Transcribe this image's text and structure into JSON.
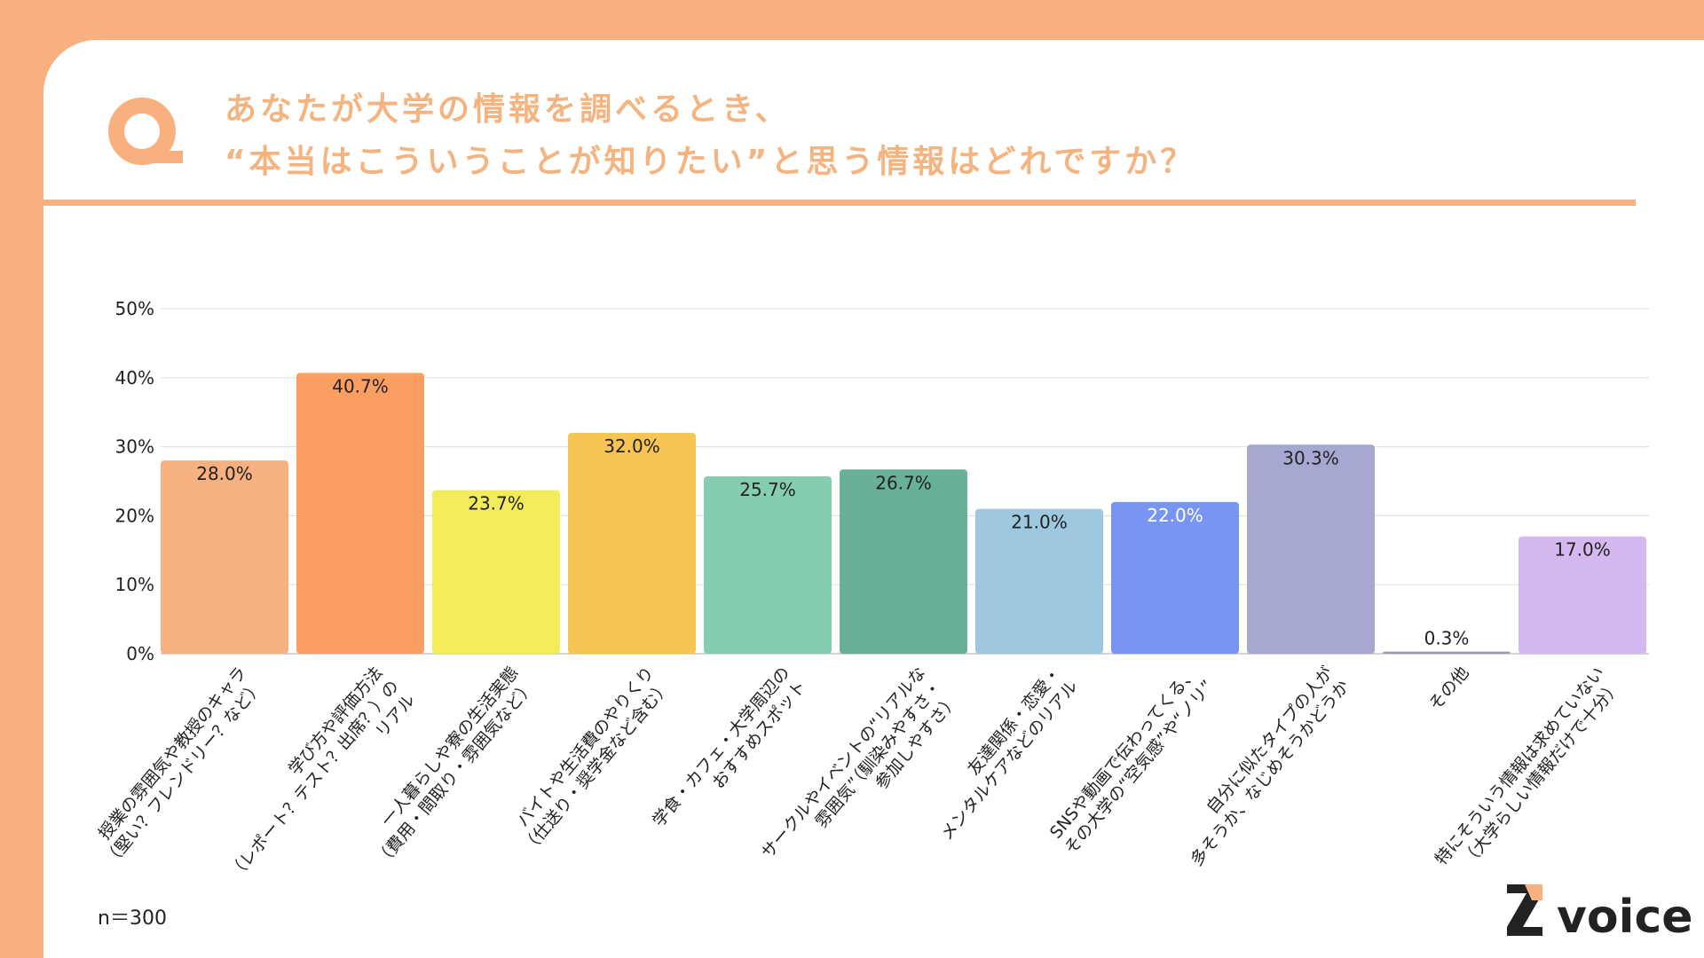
{
  "title": {
    "line1": "あなたが大学の情報を調べるとき、",
    "line2": "“本当はこういうことが知りたい”と思う情報はどれですか？"
  },
  "sample_size": "n＝300",
  "brand": {
    "logo_text": "voice",
    "logo_mark": "Z"
  },
  "colors": {
    "accent": "#F8B07E",
    "title": "#F5B37F"
  },
  "chart_data": {
    "type": "bar",
    "categories": [
      [
        "授業の雰囲気や教授のキャラ",
        "（堅い？フレンドリー？など）"
      ],
      [
        "学び方や評価方法",
        "（レポート？テスト？出席？）の",
        "リアル"
      ],
      [
        "一人暮らしや寮の生活実態",
        "（費用・間取り・雰囲気など）"
      ],
      [
        "バイトや生活費のやりくり",
        "（仕送り・奨学金など含む）"
      ],
      [
        "学食・カフェ・大学周辺の",
        "おすすめスポット"
      ],
      [
        "サークルやイベントの“リアルな",
        "雰囲気”（馴染みやすさ・",
        "参加しやすさ）"
      ],
      [
        "友達関係・恋愛・",
        "メンタルケアなどのリアル"
      ],
      [
        "SNSや動画で伝わってくる、",
        "その大学の“空気感”や“ノリ”"
      ],
      [
        "自分に似たタイプの人が",
        "多そうか、なじめそうかどうか"
      ],
      [
        "その他"
      ],
      [
        "特にそういう情報は求めていない",
        "（大学らしい情報だけで十分）"
      ]
    ],
    "values": [
      28.0,
      40.7,
      23.7,
      32.0,
      25.7,
      26.7,
      21.0,
      22.0,
      30.3,
      0.3,
      17.0
    ],
    "data_labels": [
      "28.0%",
      "40.7%",
      "23.7%",
      "32.0%",
      "25.7%",
      "26.7%",
      "21.0%",
      "22.0%",
      "30.3%",
      "0.3%",
      "17.0%"
    ],
    "bar_colors": [
      "#F7B07F",
      "#FB9E62",
      "#F2EB5A",
      "#F5C453",
      "#84CDB0",
      "#68B196",
      "#9DC8E0",
      "#7896F1",
      "#A6A8D2",
      "#9A9AB8",
      "#D6B8F0"
    ],
    "label_colors": [
      "#222",
      "#222",
      "#222",
      "#222",
      "#222",
      "#222",
      "#222",
      "#ffffff",
      "#222",
      "#222",
      "#222"
    ],
    "yticks": [
      "0%",
      "10%",
      "20%",
      "30%",
      "40%",
      "50%"
    ],
    "ylim": [
      0,
      50
    ],
    "grid": true,
    "legend": "none"
  }
}
